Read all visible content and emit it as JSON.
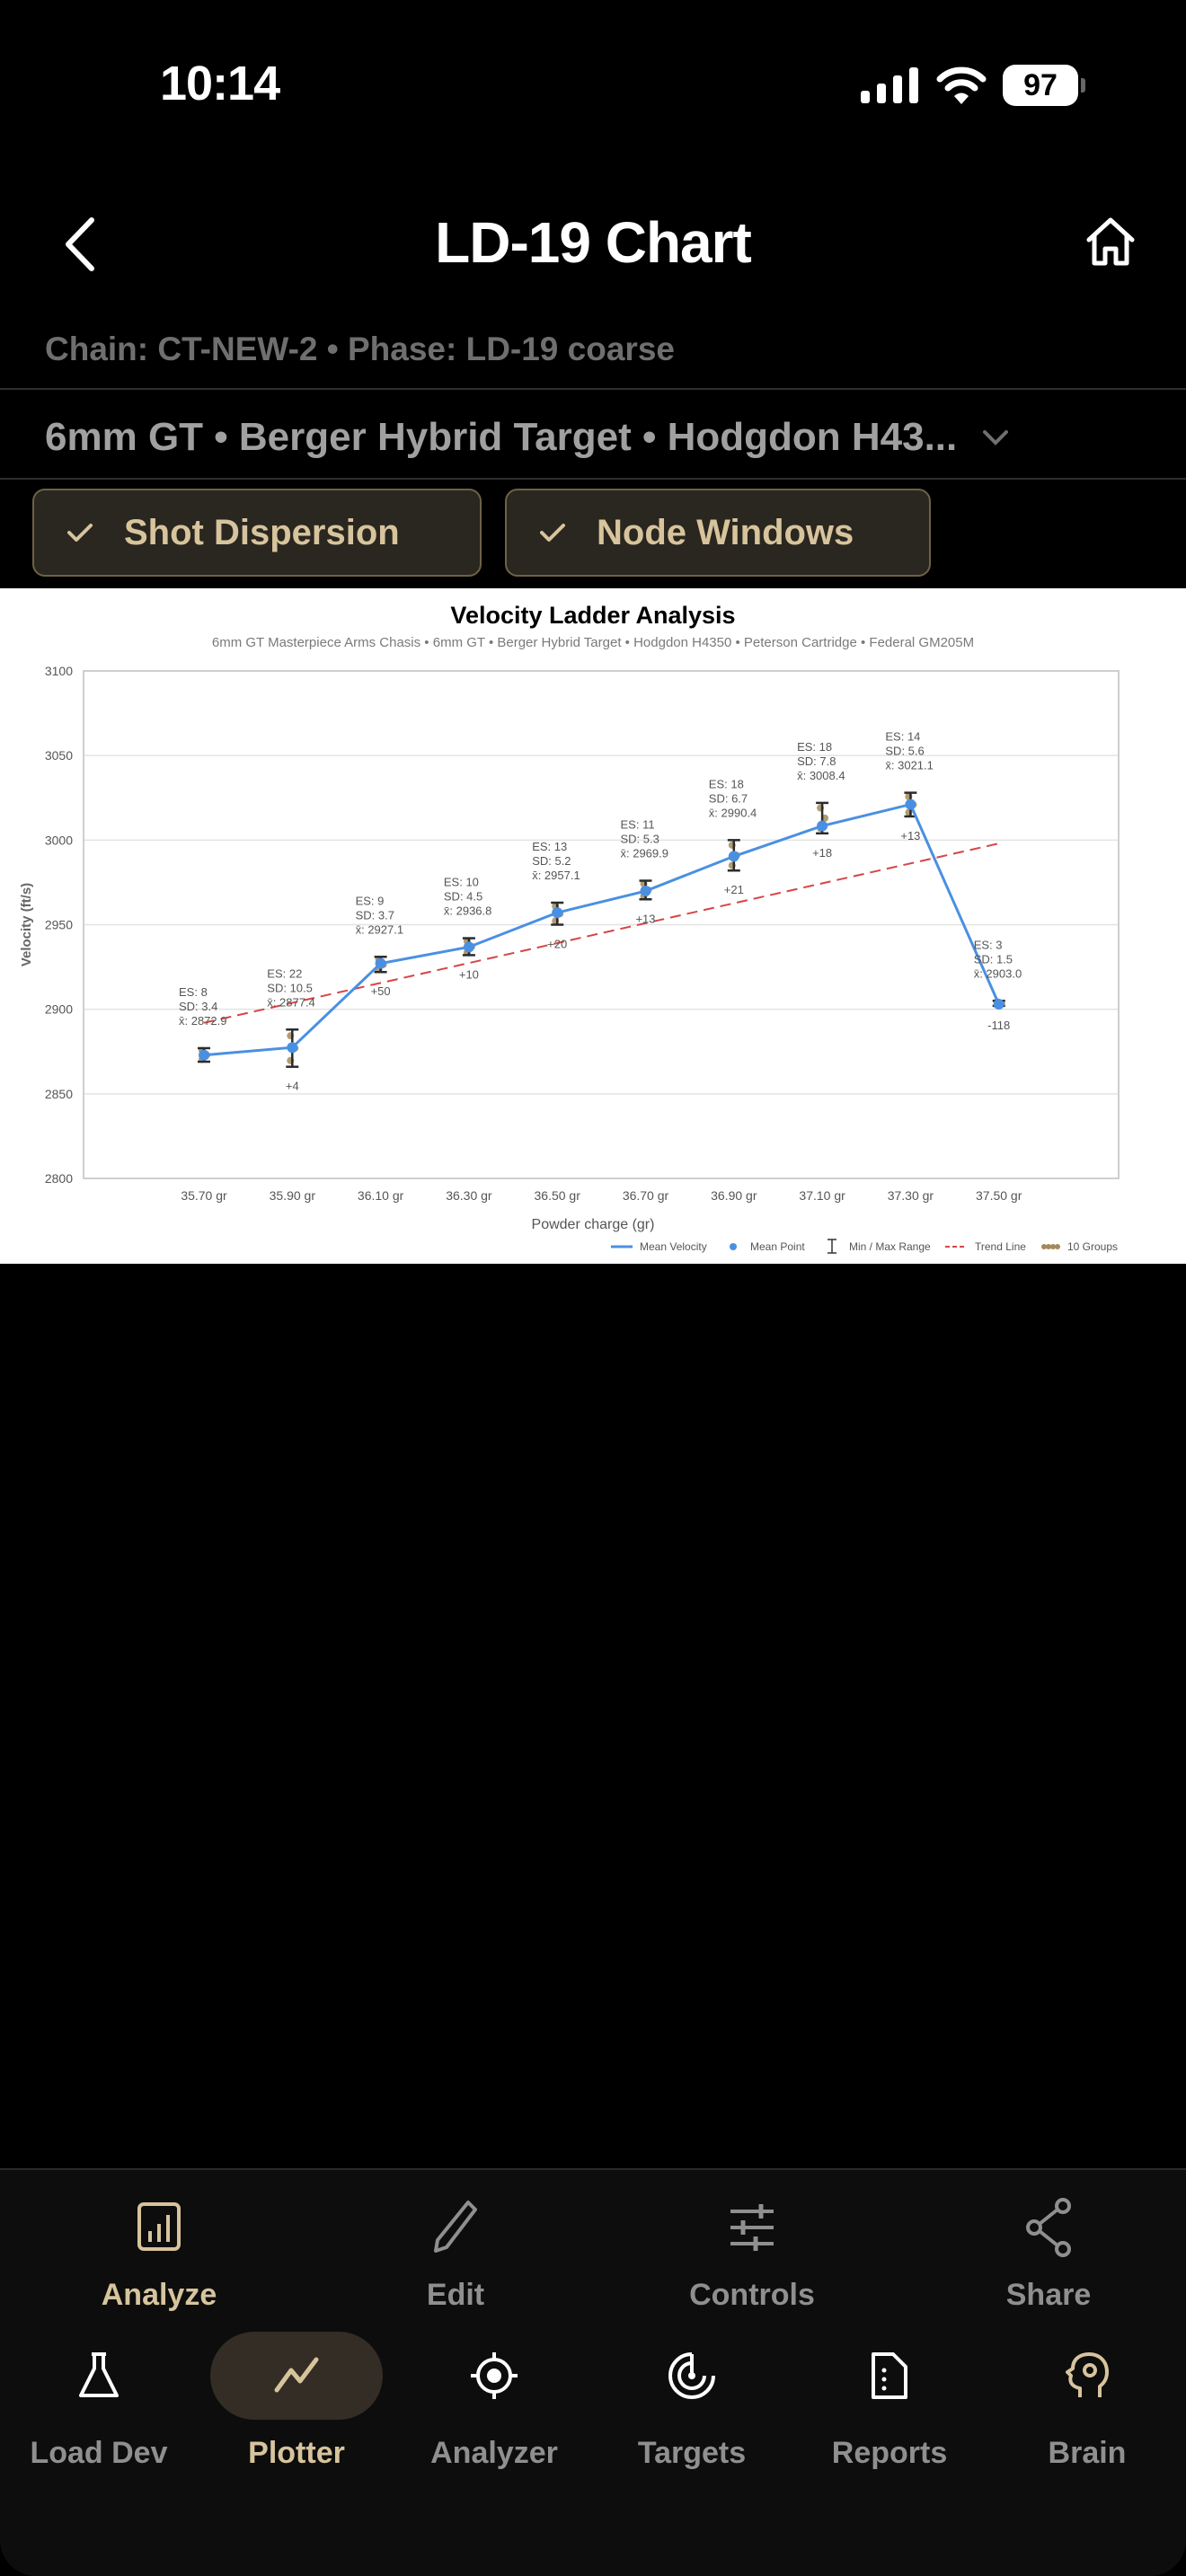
{
  "status_bar": {
    "time": "10:14",
    "battery": "97"
  },
  "nav": {
    "title": "LD-19 Chart",
    "back_icon": "chevron-left-icon",
    "home_icon": "home-icon"
  },
  "chain_line": "Chain: CT-NEW-2 • Phase: LD-19 coarse",
  "selector": {
    "value": "6mm GT • Berger Hybrid Target • Hodgdon H43...",
    "icon": "chevron-down-icon"
  },
  "chips": [
    {
      "label": "Shot Dispersion",
      "checked": true
    },
    {
      "label": "Node Windows",
      "checked": true
    }
  ],
  "colors": {
    "accent": "#d7c49c",
    "mean_line": "#4a90e2",
    "trend_line": "#d64545",
    "error_bar": "#2b2b2b",
    "shot_dot": "#a48a5a",
    "chip_bg": "#2a2620",
    "chip_border": "#6e6244"
  },
  "chart_data": {
    "type": "line",
    "title": "Velocity Ladder Analysis",
    "subtitle": "6mm GT Masterpiece Arms Chasis • 6mm GT • Berger Hybrid Target • Hodgdon H4350 • Peterson Cartridge • Federal GM205M",
    "xlabel": "Powder charge (gr)",
    "ylabel": "Velocity (ft/s)",
    "ylim": [
      2800,
      3100
    ],
    "yticks": [
      2800,
      2850,
      2900,
      2950,
      3000,
      3050,
      3100
    ],
    "grid": true,
    "legend_position": "bottom-right",
    "legend": [
      "Mean Velocity",
      "Mean Point",
      "Min / Max Range",
      "Trend Line",
      "10 Groups"
    ],
    "categories": [
      "35.70 gr",
      "35.90 gr",
      "36.10 gr",
      "36.30 gr",
      "36.50 gr",
      "36.70 gr",
      "36.90 gr",
      "37.10 gr",
      "37.30 gr",
      "37.50 gr"
    ],
    "series": [
      {
        "name": "Mean Velocity",
        "values": [
          2872.9,
          2877.4,
          2927.1,
          2936.8,
          2957.1,
          2969.9,
          2990.4,
          3008.4,
          3021.1,
          2903.0
        ]
      },
      {
        "name": "Min",
        "values": [
          2869,
          2866,
          2922,
          2932,
          2950,
          2965,
          2982,
          3004,
          3014,
          2902
        ]
      },
      {
        "name": "Max",
        "values": [
          2877,
          2888,
          2931,
          2942,
          2963,
          2976,
          3000,
          3022,
          3028,
          2905
        ]
      },
      {
        "name": "Trend Line",
        "values": [
          2892,
          2904,
          2916,
          2928,
          2940,
          2952,
          2963,
          2975,
          2987,
          2998
        ]
      }
    ],
    "es": [
      8,
      22,
      9,
      10,
      13,
      11,
      18,
      18,
      14,
      3
    ],
    "sd": [
      3.4,
      10.5,
      3.7,
      4.5,
      5.2,
      5.3,
      6.7,
      7.8,
      5.6,
      1.5
    ],
    "delta_labels": [
      "",
      "+4",
      "+50",
      "+10",
      "+20",
      "+13",
      "+21",
      "+18",
      "+13",
      "-118"
    ]
  },
  "toolbar": [
    {
      "label": "Analyze",
      "icon": "bar-chart-icon",
      "active": true
    },
    {
      "label": "Edit",
      "icon": "pencil-icon",
      "active": false
    },
    {
      "label": "Controls",
      "icon": "sliders-icon",
      "active": false
    },
    {
      "label": "Share",
      "icon": "share-icon",
      "active": false
    }
  ],
  "tabs": [
    {
      "label": "Load Dev",
      "icon": "flask-icon",
      "active": false
    },
    {
      "label": "Plotter",
      "icon": "trend-line-icon",
      "active": true
    },
    {
      "label": "Analyzer",
      "icon": "crosshair-icon",
      "active": false
    },
    {
      "label": "Targets",
      "icon": "target-icon",
      "active": false
    },
    {
      "label": "Reports",
      "icon": "document-icon",
      "active": false
    },
    {
      "label": "Brain",
      "icon": "brain-gear-icon",
      "active": false
    }
  ]
}
